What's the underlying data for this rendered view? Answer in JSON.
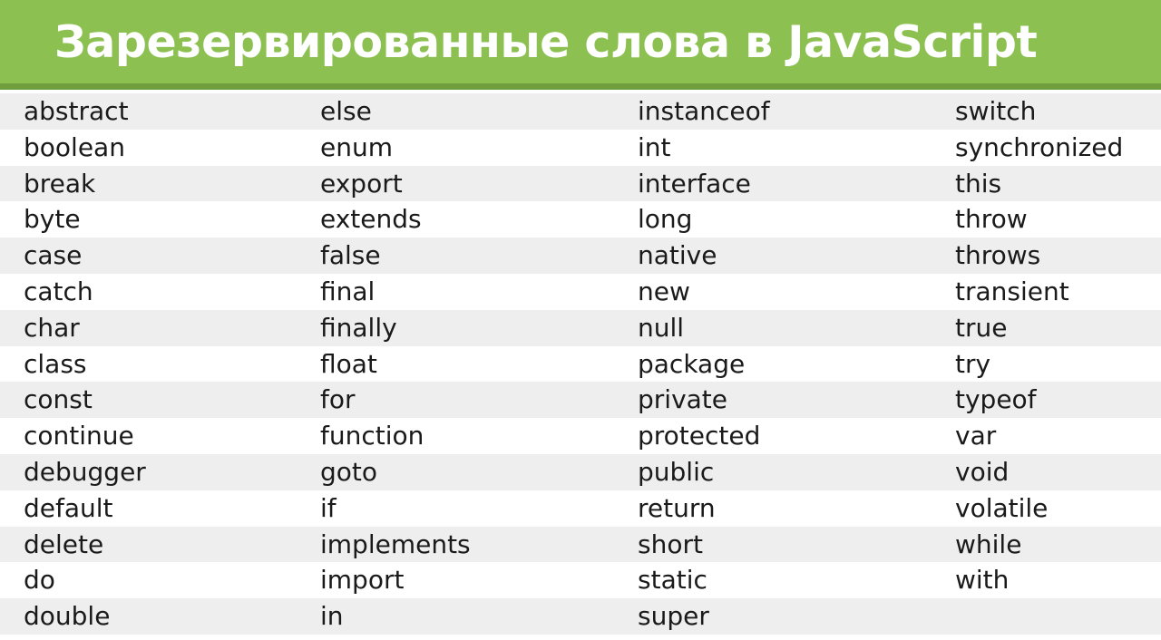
{
  "header": {
    "title": "Зарезервированные слова в JavaScript"
  },
  "colors": {
    "header_bg": "#8cc152",
    "header_rule": "#6e9e3e",
    "row_stripe": "#eeeeee"
  },
  "rows": [
    [
      "abstract",
      "else",
      "instanceof",
      "switch"
    ],
    [
      "boolean",
      "enum",
      "int",
      "synchronized"
    ],
    [
      "break",
      "export",
      "interface",
      "this"
    ],
    [
      "byte",
      "extends",
      "long",
      "throw"
    ],
    [
      "case",
      "false",
      "native",
      "throws"
    ],
    [
      "catch",
      "final",
      "new",
      "transient"
    ],
    [
      "char",
      "finally",
      "null",
      "true"
    ],
    [
      "class",
      "float",
      "package",
      "try"
    ],
    [
      "const",
      "for",
      "private",
      "typeof"
    ],
    [
      "continue",
      "function",
      "protected",
      "var"
    ],
    [
      "debugger",
      "goto",
      "public",
      "void"
    ],
    [
      "default",
      "if",
      "return",
      "volatile"
    ],
    [
      "delete",
      "implements",
      "short",
      "while"
    ],
    [
      "do",
      "import",
      "static",
      "with"
    ],
    [
      "double",
      "in",
      "super",
      ""
    ]
  ]
}
